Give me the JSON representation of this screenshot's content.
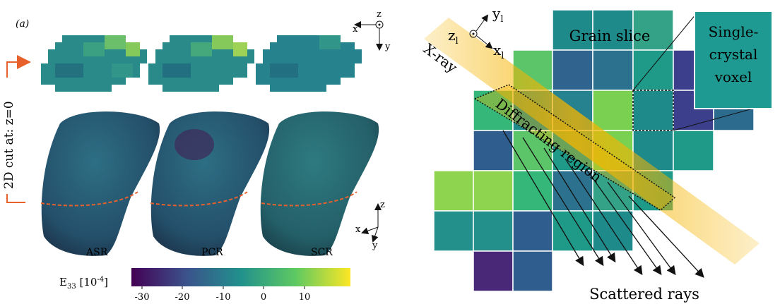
{
  "panel_label": "(a)",
  "cut_label": "2D cut at: z=0",
  "method_labels": [
    "ASR",
    "PCR",
    "SCR"
  ],
  "colorbar": {
    "label_main": "E",
    "label_sub": "33",
    "label_unit": "[10",
    "label_exp": "-4",
    "label_close": "]",
    "ticks": [
      "-30",
      "-20",
      "-10",
      "0",
      "10"
    ],
    "colormap": [
      "#440154",
      "#3b528b",
      "#21918c",
      "#5ec962",
      "#fde725"
    ]
  },
  "axes_top": {
    "x": "x",
    "y": "y",
    "z": "z"
  },
  "axes_bottom": {
    "x": "x",
    "y": "y",
    "z": "z"
  },
  "lab_axes": {
    "x": "x",
    "x_sub": "l",
    "y": "y",
    "y_sub": "l",
    "z": "z",
    "z_sub": "l"
  },
  "labels": {
    "xray": "X-ray",
    "grain_slice": "Grain slice",
    "voxel_line1": "Single-",
    "voxel_line2": "crystal",
    "voxel_line3": "voxel",
    "diffracting": "Diffracting region",
    "scattered": "Scattered rays"
  },
  "colors": {
    "cut_arrow": "#e8612c",
    "cut_line": "#e8612c",
    "beam": "#f5b400"
  }
}
